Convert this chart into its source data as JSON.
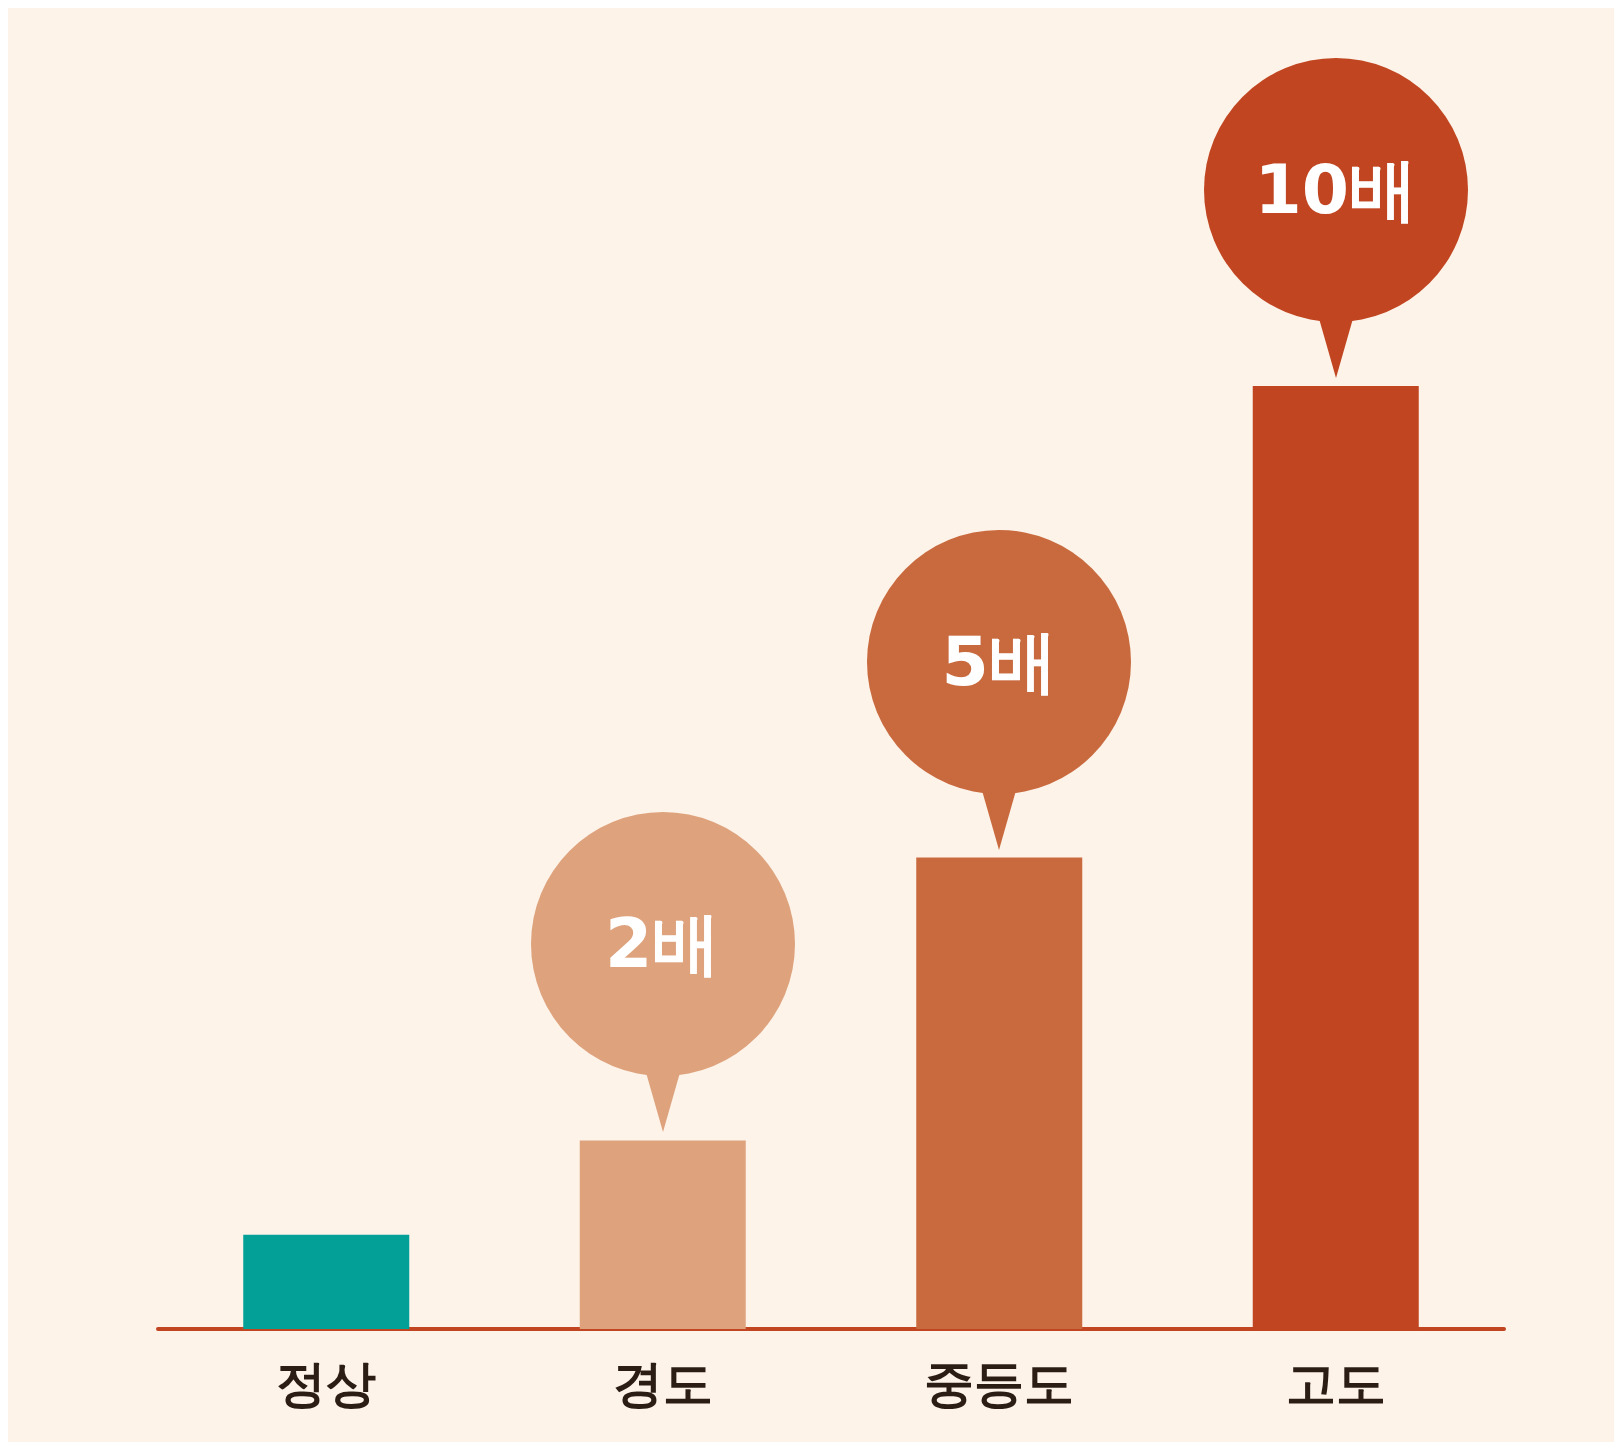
{
  "chart_data": {
    "type": "bar",
    "categories": [
      "정상",
      "경도",
      "중등도",
      "고도"
    ],
    "values": [
      1,
      2,
      5,
      10
    ],
    "colors": [
      "#02a096",
      "#dea27c",
      "#c96a3e",
      "#c04520"
    ],
    "value_labels": [
      null,
      "2배",
      "5배",
      "10배"
    ]
  }
}
